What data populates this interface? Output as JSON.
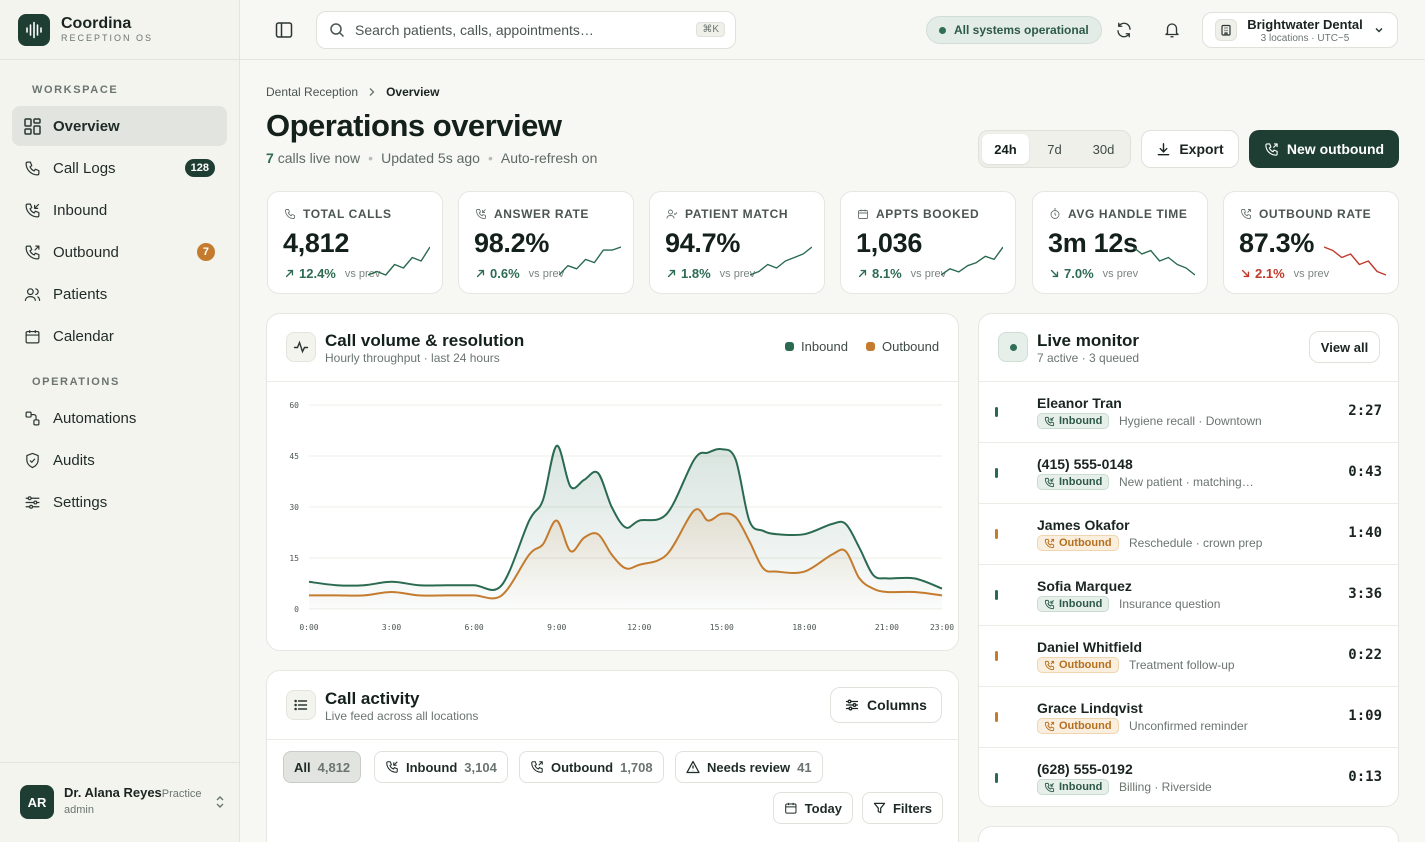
{
  "brand": {
    "name": "Coordina",
    "sub": "RECEPTION OS"
  },
  "sidebar": {
    "workspace_label": "WORKSPACE",
    "operations_label": "OPERATIONS",
    "workspace": [
      {
        "label": "Overview",
        "icon": "grid-icon"
      },
      {
        "label": "Call Logs",
        "icon": "phone-icon",
        "badge": "128"
      },
      {
        "label": "Inbound",
        "icon": "phone-incoming-icon"
      },
      {
        "label": "Outbound",
        "icon": "phone-outgoing-icon",
        "badge": "7"
      },
      {
        "label": "Patients",
        "icon": "users-icon"
      },
      {
        "label": "Calendar",
        "icon": "calendar-icon"
      }
    ],
    "operations": [
      {
        "label": "Automations",
        "icon": "workflow-icon"
      },
      {
        "label": "Audits",
        "icon": "shield-icon"
      },
      {
        "label": "Settings",
        "icon": "sliders-icon"
      }
    ],
    "user": {
      "initials": "AR",
      "name": "Dr. Alana Reyes",
      "role_a": "Practice",
      "role_b": "admin"
    }
  },
  "topbar": {
    "search_placeholder": "Search patients, calls, appointments…",
    "search_shortcut": "⌘K",
    "status": "All systems operational",
    "org_name": "Brightwater Dental",
    "org_sub": "3 locations · UTC−5"
  },
  "header": {
    "crumb_root": "Dental Reception",
    "crumb_current": "Overview",
    "title": "Operations overview",
    "live_count": "7",
    "live_text": "calls live now",
    "updated_label": "Updated",
    "updated_value": "5s",
    "updated_suffix": "ago",
    "auto_refresh": "Auto-refresh on",
    "ranges": [
      "24h",
      "7d",
      "30d"
    ],
    "selected_range": "24h",
    "export_label": "Export",
    "new_outbound_label": "New outbound"
  },
  "kpis": [
    {
      "label": "TOTAL CALLS",
      "icon": "phone-icon",
      "value": "4,812",
      "delta": "12.4%",
      "trend": "up",
      "vs": "vs prev",
      "spark": [
        3,
        4,
        3,
        6,
        5,
        8,
        7,
        11
      ]
    },
    {
      "label": "ANSWER RATE",
      "icon": "phone-incoming-icon",
      "value": "98.2%",
      "delta": "0.6%",
      "trend": "up",
      "vs": "vs prev",
      "spark": [
        2,
        5,
        4,
        7,
        6,
        10,
        10,
        11
      ]
    },
    {
      "label": "PATIENT MATCH",
      "icon": "user-check-icon",
      "value": "94.7%",
      "delta": "1.8%",
      "trend": "up",
      "vs": "vs prev",
      "spark": [
        2,
        3,
        5,
        4,
        6,
        7,
        8,
        10
      ]
    },
    {
      "label": "APPTS BOOKED",
      "icon": "calendar-icon",
      "value": "1,036",
      "delta": "8.1%",
      "trend": "up",
      "vs": "vs prev",
      "spark": [
        2,
        4,
        3,
        5,
        6,
        8,
        7,
        11
      ]
    },
    {
      "label": "AVG HANDLE TIME",
      "icon": "timer-icon",
      "value": "3m 12s",
      "delta": "7.0%",
      "trend": "down-good",
      "vs": "vs prev",
      "spark": [
        10,
        8,
        9,
        6,
        7,
        5,
        4,
        2
      ]
    },
    {
      "label": "OUTBOUND RATE",
      "icon": "phone-outgoing-icon",
      "value": "87.3%",
      "delta": "2.1%",
      "trend": "down",
      "vs": "vs prev",
      "spark": [
        10,
        9,
        7,
        8,
        5,
        6,
        3,
        2
      ]
    }
  ],
  "volume_panel": {
    "title": "Call volume & resolution",
    "subtitle": "Hourly throughput · last 24 hours",
    "legend_inbound": "Inbound",
    "legend_outbound": "Outbound"
  },
  "chart_data": {
    "type": "area",
    "x": [
      "0:00",
      "1:00",
      "2:00",
      "3:00",
      "4:00",
      "5:00",
      "6:00",
      "7:00",
      "8:00",
      "8:30",
      "9:00",
      "9:30",
      "10:00",
      "10:30",
      "11:00",
      "11:30",
      "12:00",
      "13:00",
      "14:00",
      "14:30",
      "15:00",
      "15:30",
      "16:00",
      "16:30",
      "17:00",
      "18:00",
      "19:00",
      "19:30",
      "20:00",
      "20:30",
      "21:00",
      "22:00",
      "23:00"
    ],
    "xticks": [
      "0:00",
      "3:00",
      "6:00",
      "9:00",
      "12:00",
      "15:00",
      "18:00",
      "21:00",
      "23:00"
    ],
    "series": [
      {
        "name": "Inbound",
        "color": "#2a6a50",
        "values": [
          8,
          7,
          7,
          8,
          7,
          7,
          7,
          7,
          26,
          32,
          48,
          36,
          38,
          40,
          30,
          24,
          26,
          28,
          44,
          46,
          47,
          44,
          26,
          23,
          22,
          22,
          25,
          25,
          18,
          10,
          9,
          9,
          6
        ]
      },
      {
        "name": "Outbound",
        "color": "#c47b2e",
        "values": [
          4,
          4,
          4,
          5,
          4,
          4,
          4,
          4,
          16,
          19,
          26,
          17,
          21,
          22,
          16,
          12,
          13,
          16,
          29,
          26,
          28,
          27,
          20,
          12,
          11,
          11,
          16,
          17,
          9,
          6,
          5,
          5,
          4
        ]
      }
    ],
    "ylim": [
      0,
      60
    ],
    "yticks": [
      0,
      15,
      30,
      45,
      60
    ],
    "grid": true,
    "legend": "top-right"
  },
  "live_monitor": {
    "title": "Live monitor",
    "subtitle": "7 active · 3 queued",
    "view_all": "View all",
    "calls": [
      {
        "name": "Eleanor Tran",
        "direction": "Inbound",
        "desc": "Hygiene recall · Downtown",
        "time": "2:27"
      },
      {
        "name": "(415) 555-0148",
        "direction": "Inbound",
        "desc": "New patient · matching…",
        "time": "0:43"
      },
      {
        "name": "James Okafor",
        "direction": "Outbound",
        "desc": "Reschedule · crown prep",
        "time": "1:40"
      },
      {
        "name": "Sofia Marquez",
        "direction": "Inbound",
        "desc": "Insurance question",
        "time": "3:36"
      },
      {
        "name": "Daniel Whitfield",
        "direction": "Outbound",
        "desc": "Treatment follow-up",
        "time": "0:22"
      },
      {
        "name": "Grace Lindqvist",
        "direction": "Outbound",
        "desc": "Unconfirmed reminder",
        "time": "1:09"
      },
      {
        "name": "(628) 555-0192",
        "direction": "Inbound",
        "desc": "Billing · Riverside",
        "time": "0:13"
      }
    ]
  },
  "activity": {
    "title": "Call activity",
    "subtitle": "Live feed across all locations",
    "columns_label": "Columns",
    "filters": [
      {
        "label": "All",
        "count": "4,812"
      },
      {
        "label": "Inbound",
        "count": "3,104"
      },
      {
        "label": "Outbound",
        "count": "1,708"
      },
      {
        "label": "Needs review",
        "count": "41"
      }
    ],
    "today_label": "Today",
    "filters_label": "Filters"
  },
  "colors": {
    "brand": "#1e3d33",
    "inbound": "#2a6a50",
    "outbound": "#c47b2e",
    "negative": "#c0392b"
  }
}
